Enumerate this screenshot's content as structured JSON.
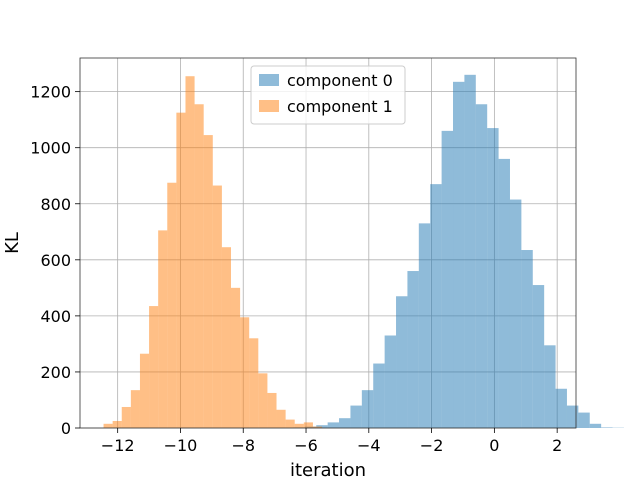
{
  "chart_data": {
    "type": "histogram",
    "title": "",
    "xlabel": "iteration",
    "ylabel": "KL",
    "xlim": [
      -13.2,
      2.6
    ],
    "ylim": [
      0,
      1320
    ],
    "xticks": [
      -12,
      -10,
      -8,
      -6,
      -4,
      -2,
      0,
      2
    ],
    "xtick_labels": [
      "−12",
      "−10",
      "−8",
      "−6",
      "−4",
      "−2",
      "0",
      "2"
    ],
    "yticks": [
      0,
      200,
      400,
      600,
      800,
      1000,
      1200
    ],
    "ytick_labels": [
      "0",
      "200",
      "400",
      "600",
      "800",
      "1000",
      "1200"
    ],
    "grid": true,
    "legend_position": "top-center",
    "series": [
      {
        "name": "component 0",
        "color": "#1f77b4",
        "alpha": 0.5,
        "bin_start": -6.4,
        "bin_width": 0.363,
        "values": [
          2,
          5,
          10,
          20,
          35,
          80,
          135,
          230,
          330,
          470,
          560,
          730,
          870,
          1060,
          1235,
          1260,
          1155,
          1070,
          960,
          815,
          635,
          510,
          295,
          140,
          80,
          55,
          15,
          2,
          1
        ]
      },
      {
        "name": "component 1",
        "color": "#ff7f0e",
        "alpha": 0.5,
        "bin_start": -12.45,
        "bin_width": 0.29,
        "values": [
          15,
          25,
          75,
          135,
          265,
          435,
          705,
          875,
          1125,
          1255,
          1155,
          1045,
          865,
          645,
          500,
          395,
          320,
          195,
          125,
          65,
          30,
          15,
          20,
          5
        ]
      }
    ]
  }
}
